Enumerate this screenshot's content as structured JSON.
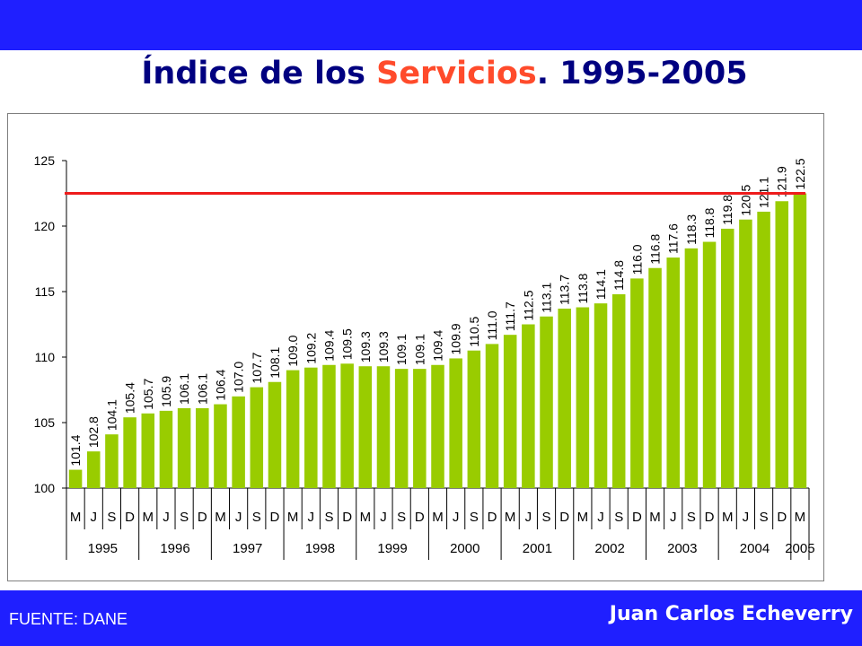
{
  "header": {
    "title_part1": "Índice de los ",
    "title_part2": "Servicios",
    "title_part3": ". 1995-2005"
  },
  "footer": {
    "source": "FUENTE: DANE",
    "author": "Juan Carlos Echeverry"
  },
  "colors": {
    "band": "#1f1fff",
    "bar": "#99cc00",
    "reference_line": "#ee1c1c",
    "title": "#000080",
    "title_accent": "#ff4b2b"
  },
  "chart_data": {
    "type": "bar",
    "title": "Índice de los Servicios. 1995-2005",
    "ylim": [
      100,
      125
    ],
    "yticks": [
      100,
      105,
      110,
      115,
      120,
      125
    ],
    "months": [
      "M",
      "J",
      "S",
      "D",
      "M",
      "J",
      "S",
      "D",
      "M",
      "J",
      "S",
      "D",
      "M",
      "J",
      "S",
      "D",
      "M",
      "J",
      "S",
      "D",
      "M",
      "J",
      "S",
      "D",
      "M",
      "J",
      "S",
      "D",
      "M",
      "J",
      "S",
      "D",
      "M",
      "J",
      "S",
      "D",
      "M",
      "J",
      "S",
      "D",
      "M"
    ],
    "years": [
      {
        "label": "1995",
        "count": 4
      },
      {
        "label": "1996",
        "count": 4
      },
      {
        "label": "1997",
        "count": 4
      },
      {
        "label": "1998",
        "count": 4
      },
      {
        "label": "1999",
        "count": 4
      },
      {
        "label": "2000",
        "count": 4
      },
      {
        "label": "2001",
        "count": 4
      },
      {
        "label": "2002",
        "count": 4
      },
      {
        "label": "2003",
        "count": 4
      },
      {
        "label": "2004",
        "count": 4
      },
      {
        "label": "2005",
        "count": 1
      }
    ],
    "values": [
      101.4,
      102.8,
      104.1,
      105.4,
      105.7,
      105.9,
      106.1,
      106.1,
      106.4,
      107.0,
      107.7,
      108.1,
      109.0,
      109.2,
      109.4,
      109.5,
      109.3,
      109.3,
      109.1,
      109.1,
      109.4,
      109.9,
      110.5,
      111.0,
      111.7,
      112.5,
      113.1,
      113.7,
      113.8,
      114.1,
      114.8,
      116.0,
      116.8,
      117.6,
      118.3,
      118.8,
      119.8,
      120.5,
      121.1,
      121.9,
      122.5
    ],
    "value_labels": [
      "101.4",
      "102.8",
      "104.1",
      "105.4",
      "105.7",
      "105.9",
      "106.1",
      "106.1",
      "106.4",
      "107.0",
      "107.7",
      "108.1",
      "109.0",
      "109.2",
      "109.4",
      "109.5",
      "109.3",
      "109.3",
      "109.1",
      "109.1",
      "109.4",
      "109.9",
      "110.5",
      "111.0",
      "111.7",
      "112.5",
      "113.1",
      "113.7",
      "113.8",
      "114.1",
      "114.8",
      "116.0",
      "116.8",
      "117.6",
      "118.3",
      "118.8",
      "119.8",
      "120.5",
      "121.1",
      "121.9",
      "122.5"
    ],
    "reference_line": 122.5,
    "grid": false
  }
}
